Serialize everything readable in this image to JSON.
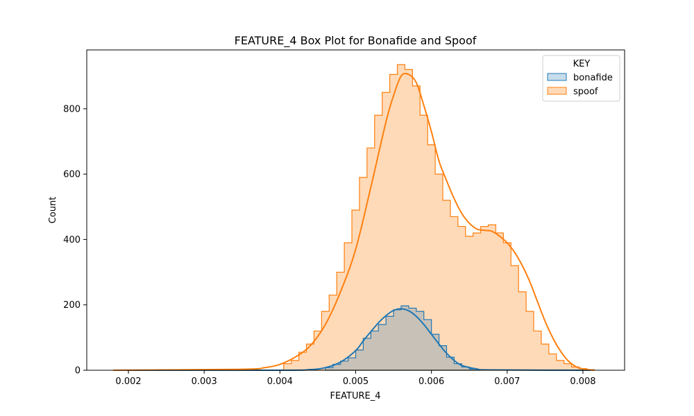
{
  "chart_data": {
    "type": "histogram",
    "title": "FEATURE_4 Box Plot for Bonafide and Spoof",
    "xlabel": "FEATURE_4",
    "ylabel": "Count",
    "xlim": [
      0.00145,
      0.00855
    ],
    "ylim": [
      0,
      980
    ],
    "x_ticks": [
      0.002,
      0.003,
      0.004,
      0.005,
      0.006,
      0.007,
      0.008
    ],
    "x_tick_labels": [
      "0.002",
      "0.003",
      "0.004",
      "0.005",
      "0.006",
      "0.007",
      "0.008"
    ],
    "y_ticks": [
      0,
      200,
      400,
      600,
      800
    ],
    "y_tick_labels": [
      "0",
      "200",
      "400",
      "600",
      "800"
    ],
    "grid": false,
    "legend": {
      "title": "KEY",
      "placement": "top-right"
    },
    "series": [
      {
        "name": "bonafide",
        "color": "#1f77b4",
        "fill": "#1f77b4",
        "bin_edges": [
          0.0046,
          0.0047,
          0.0048,
          0.0049,
          0.005,
          0.0051,
          0.0052,
          0.0053,
          0.0054,
          0.0055,
          0.0056,
          0.0057,
          0.0058,
          0.0059,
          0.006,
          0.0061,
          0.0062,
          0.0063,
          0.0064,
          0.0065,
          0.0066
        ],
        "counts": [
          8,
          18,
          28,
          38,
          62,
          98,
          120,
          140,
          165,
          185,
          197,
          190,
          180,
          155,
          110,
          75,
          40,
          20,
          10,
          4
        ],
        "kde_x": [
          0.0018,
          0.004,
          0.0044,
          0.0046,
          0.0048,
          0.005,
          0.0051,
          0.0052,
          0.0053,
          0.0054,
          0.0055,
          0.0056,
          0.0057,
          0.0058,
          0.0059,
          0.006,
          0.0061,
          0.0062,
          0.0063,
          0.0064,
          0.0066,
          0.0068,
          0.0081
        ],
        "kde_y": [
          0,
          0,
          2,
          8,
          25,
          60,
          90,
          118,
          145,
          167,
          183,
          188,
          182,
          165,
          140,
          110,
          80,
          52,
          30,
          15,
          4,
          1,
          0
        ]
      },
      {
        "name": "spoof",
        "color": "#ff7f0e",
        "fill": "#ffdab8",
        "bin_edges": [
          0.00405,
          0.00415,
          0.00425,
          0.00435,
          0.00445,
          0.00455,
          0.00465,
          0.00475,
          0.00485,
          0.00495,
          0.00505,
          0.00515,
          0.00525,
          0.00535,
          0.00545,
          0.00555,
          0.00565,
          0.00575,
          0.00585,
          0.00595,
          0.00605,
          0.00615,
          0.00625,
          0.00635,
          0.00645,
          0.00655,
          0.00665,
          0.00675,
          0.00685,
          0.00695,
          0.00705,
          0.00715,
          0.00725,
          0.00735,
          0.00745,
          0.00755,
          0.00765,
          0.00775,
          0.00785,
          0.00795,
          0.00805,
          0.00815
        ],
        "counts": [
          20,
          30,
          55,
          80,
          120,
          180,
          230,
          300,
          390,
          490,
          590,
          680,
          780,
          850,
          905,
          935,
          920,
          870,
          780,
          690,
          600,
          520,
          470,
          440,
          410,
          420,
          440,
          445,
          420,
          390,
          320,
          240,
          180,
          120,
          80,
          50,
          30,
          20,
          10,
          5,
          2
        ],
        "kde_x": [
          0.0018,
          0.0035,
          0.0038,
          0.004,
          0.0042,
          0.0044,
          0.0046,
          0.0048,
          0.005,
          0.0052,
          0.0054,
          0.0055,
          0.0056,
          0.0057,
          0.0058,
          0.0059,
          0.006,
          0.0061,
          0.0062,
          0.0063,
          0.0064,
          0.0065,
          0.0066,
          0.0067,
          0.0068,
          0.0069,
          0.007,
          0.0071,
          0.0072,
          0.0073,
          0.0074,
          0.0075,
          0.0076,
          0.0077,
          0.0078,
          0.0079,
          0.008,
          0.00815
        ],
        "kde_y": [
          0,
          3,
          8,
          18,
          40,
          75,
          140,
          240,
          370,
          560,
          760,
          840,
          900,
          905,
          880,
          810,
          730,
          640,
          580,
          525,
          480,
          450,
          432,
          428,
          425,
          410,
          390,
          360,
          320,
          270,
          210,
          150,
          100,
          60,
          30,
          12,
          4,
          0
        ]
      }
    ]
  }
}
